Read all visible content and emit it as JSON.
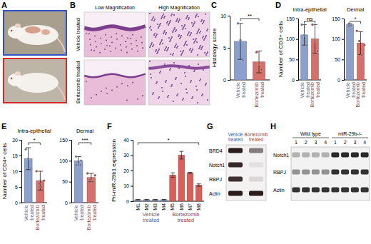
{
  "figure": {
    "panel_labels": [
      "A",
      "B",
      "C",
      "D",
      "E",
      "F",
      "G",
      "H"
    ],
    "histology": {
      "columns": [
        "Low Magnification",
        "High Magnification"
      ],
      "rows": [
        "Vehicle treated",
        "Bortezomib treated"
      ]
    },
    "blot_g": {
      "lanes": [
        "Vehicle treated",
        "Bortezomib treated"
      ],
      "rows": [
        "BRD4",
        "Notch1",
        "RBPJ",
        "Actin"
      ]
    },
    "blot_h": {
      "groups": [
        "Wild type",
        "miR-29b-/-"
      ],
      "lanes": [
        "1",
        "2",
        "3",
        "4",
        "1",
        "2",
        "3",
        "4"
      ],
      "rows": [
        "Notch1",
        "RBPJ",
        "Actin"
      ]
    }
  },
  "chart_data": [
    {
      "type": "bar",
      "y_label": "Histology score",
      "categories": [
        "Vehicle treated",
        "Bortezomib treated"
      ],
      "values": [
        6,
        2.8
      ],
      "errors": [
        2.8,
        1.7
      ],
      "points": [
        [
          8.8,
          6.2,
          3.0
        ],
        [
          4.3,
          2.5,
          1.6
        ]
      ],
      "colors": [
        "#8da0cb",
        "#d6706b"
      ],
      "ylim": [
        0,
        10
      ],
      "yticks": [
        0,
        5,
        10
      ],
      "annotations": [
        "**"
      ]
    },
    {
      "type": "bar",
      "title": "Intra-epithelial",
      "y_label": "Number of CD3+ cells",
      "categories": [
        "Vehicle treated",
        "Bortezomib treated"
      ],
      "values": [
        110,
        100
      ],
      "errors": [
        25,
        35
      ],
      "points": [
        [
          135,
          110,
          85
        ],
        [
          135,
          95,
          70
        ]
      ],
      "colors": [
        "#8da0cb",
        "#d6706b"
      ],
      "ylim": [
        0,
        150
      ],
      "yticks": [
        0,
        50,
        100,
        150
      ],
      "annotations": [
        "ns"
      ]
    },
    {
      "type": "bar",
      "title": "Dermal",
      "categories": [
        "Vehicle treated",
        "Bortezomib treated"
      ],
      "values": [
        135,
        90
      ],
      "errors": [
        3,
        28
      ],
      "points": [
        [
          137,
          133
        ],
        [
          120,
          95,
          60,
          85
        ]
      ],
      "colors": [
        "#8da0cb",
        "#d6706b"
      ],
      "ylim": [
        0,
        150
      ],
      "yticks": [
        0,
        50,
        100,
        150
      ],
      "annotations": [
        "*"
      ]
    },
    {
      "type": "bar",
      "title": "Intra-epithelial",
      "y_label": "Number of CD4+ cells",
      "categories": [
        "Vehicle treated",
        "Bortezomib treated"
      ],
      "values": [
        14,
        7
      ],
      "errors": [
        3.5,
        3
      ],
      "points": [
        [
          17,
          14,
          11
        ],
        [
          10,
          6,
          5,
          7
        ]
      ],
      "colors": [
        "#8da0cb",
        "#d6706b"
      ],
      "ylim": [
        0,
        20
      ],
      "yticks": [
        0,
        5,
        10,
        15,
        20
      ],
      "annotations": [
        "*"
      ]
    },
    {
      "type": "bar",
      "title": "Dermal",
      "categories": [
        "Vehicle treated",
        "Bortezomib treated"
      ],
      "values": [
        100,
        60
      ],
      "errors": [
        10,
        10
      ],
      "points": [
        [
          110,
          90,
          100
        ],
        [
          70,
          55,
          50,
          65
        ]
      ],
      "colors": [
        "#8da0cb",
        "#d6706b"
      ],
      "ylim": [
        0,
        150
      ],
      "yticks": [
        0,
        50,
        100,
        150
      ],
      "annotations": [
        "***"
      ]
    },
    {
      "type": "bar",
      "y_label": "Pri-miR-29b1 expression",
      "categories": [
        "M1",
        "M2",
        "M3",
        "M4",
        "M5",
        "M6",
        "M7",
        "M8"
      ],
      "series": [
        {
          "name": "Vehicle treated",
          "color": "#8da0cb",
          "values": [
            1,
            1,
            1,
            1,
            null,
            null,
            null,
            null
          ],
          "errors": [
            0.2,
            0.2,
            0.2,
            0.2,
            null,
            null,
            null,
            null
          ]
        },
        {
          "name": "Bortezomib treated",
          "color": "#d9605a",
          "values": [
            null,
            null,
            null,
            null,
            17,
            30,
            18.5,
            10.5
          ],
          "errors": [
            null,
            null,
            null,
            null,
            1.5,
            2.5,
            0.3,
            0.8
          ]
        }
      ],
      "ylim": [
        0,
        40
      ],
      "yticks": [
        0,
        10,
        20,
        30,
        40
      ],
      "annotations": [
        "*"
      ]
    }
  ]
}
